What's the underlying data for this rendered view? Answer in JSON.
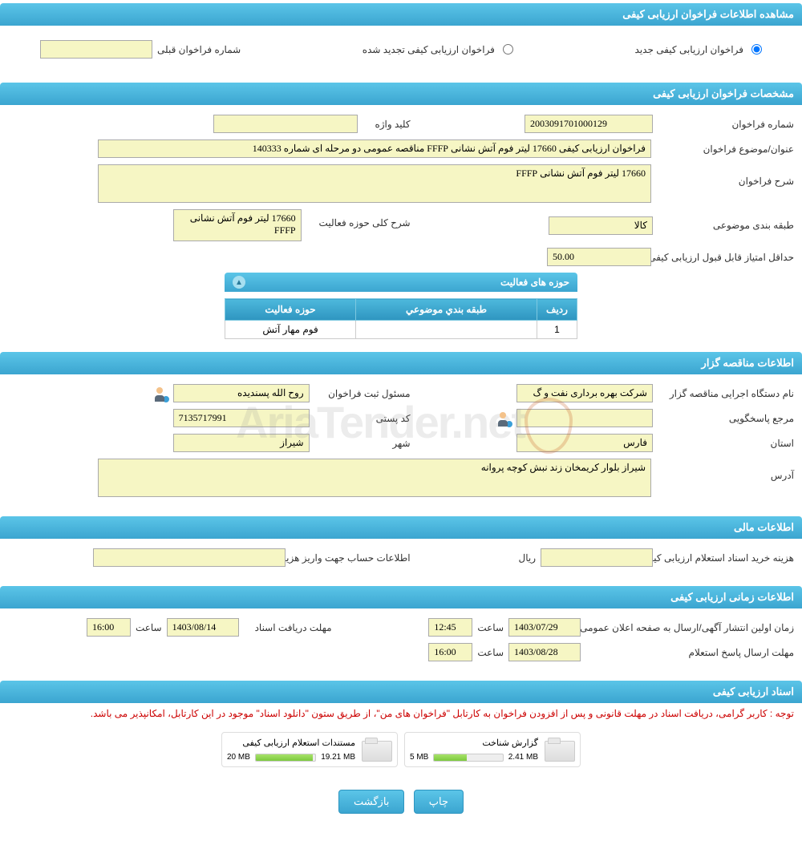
{
  "sections": {
    "view_info": "مشاهده اطلاعات فراخوان ارزیابی کیفی",
    "specs": "مشخصات فراخوان ارزیابی کیفی",
    "tender_owner": "اطلاعات مناقصه گزار",
    "financial": "اطلاعات مالی",
    "timing": "اطلاعات زمانی ارزیابی کیفی",
    "docs": "اسناد ارزیابی کیفی"
  },
  "top_options": {
    "new_call": "فراخوان ارزیابی کیفی جدید",
    "renewed_call": "فراخوان ارزیابی کیفی تجدید شده",
    "prev_number_label": "شماره فراخوان قبلی",
    "prev_number": ""
  },
  "specs": {
    "call_number_label": "شماره فراخوان",
    "call_number": "2003091701000129",
    "keyword_label": "کلید واژه",
    "keyword": "",
    "title_label": "عنوان/موضوع فراخوان",
    "title": "فراخوان ارزیابی کیفی 17660 لیتر فوم آتش نشانی FFFP مناقصه عمومی دو مرحله ای شماره 140333",
    "desc_label": "شرح فراخوان",
    "desc": "17660 لیتر فوم آتش نشانی FFFP",
    "category_label": "طبقه بندی موضوعی",
    "category": "کالا",
    "scope_label": "شرح کلی حوزه فعالیت",
    "scope": "17660 لیتر فوم آتش نشانی FFFP",
    "min_score_label": "حداقل امتیاز قابل قبول ارزیابی کیفی",
    "min_score": "50.00"
  },
  "activity_table": {
    "header": "حوزه های فعالیت",
    "col_row": "ردیف",
    "col_category": "طبقه بندي موضوعي",
    "col_scope": "حوزه فعالیت",
    "rows": [
      {
        "idx": "1",
        "category": "",
        "scope": "فوم مهار آتش"
      }
    ]
  },
  "owner": {
    "org_label": "نام دستگاه اجرایی مناقصه گزار",
    "org": "شرکت بهره برداری نفت و گ",
    "registrar_label": "مسئول ثبت فراخوان",
    "registrar": "روح الله پسندیده",
    "responder_label": "مرجع پاسخگویی",
    "responder": "",
    "postal_label": "کد پستی",
    "postal": "7135717991",
    "province_label": "استان",
    "province": "فارس",
    "city_label": "شهر",
    "city": "شیراز",
    "address_label": "آدرس",
    "address": "شیراز بلوار کریمخان زند نبش کوچه پروانه"
  },
  "financial": {
    "cost_label": "هزینه خرید اسناد استعلام ارزیابی کیفی",
    "cost": "",
    "rial": "ریال",
    "account_label": "اطلاعات حساب جهت واریز هزینه خرید اسناد",
    "account": ""
  },
  "timing": {
    "publish_label": "زمان اولین انتشار آگهی/ارسال به صفحه اعلان عمومی",
    "publish_date": "1403/07/29",
    "publish_time": "12:45",
    "receive_label": "مهلت دریافت اسناد",
    "receive_date": "1403/08/14",
    "receive_time": "16:00",
    "reply_label": "مهلت ارسال پاسخ استعلام",
    "reply_date": "1403/08/28",
    "reply_time": "16:00",
    "hour_label": "ساعت"
  },
  "docs": {
    "warning": "توجه : کاربر گرامی، دریافت اسناد در مهلت قانونی و پس از افزودن فراخوان به کارتابل \"فراخوان های من\"، از طریق ستون \"دانلود اسناد\" موجود در این کارتابل، امکانپذیر می باشد.",
    "items": [
      {
        "title": "گزارش شناخت",
        "used": "2.41 MB",
        "total": "5 MB",
        "pct": 48
      },
      {
        "title": "مستندات استعلام ارزیابی کیفی",
        "used": "19.21 MB",
        "total": "20 MB",
        "pct": 96
      }
    ]
  },
  "buttons": {
    "print": "چاپ",
    "back": "بازگشت"
  },
  "watermark": "AriaTender.net"
}
